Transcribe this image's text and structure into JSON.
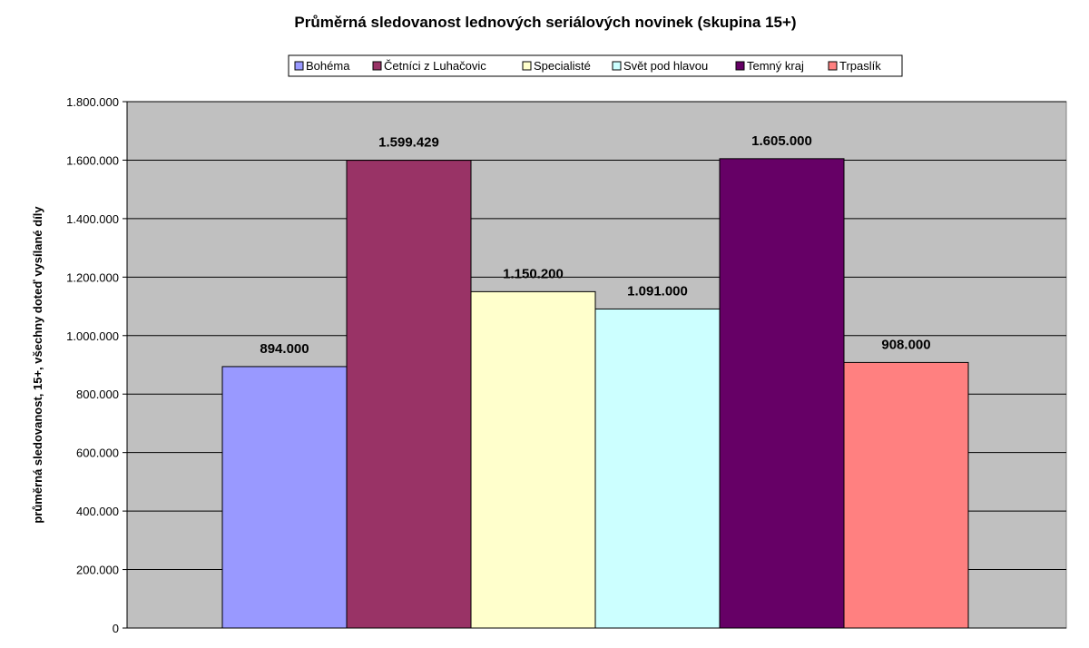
{
  "chart_data": {
    "type": "bar",
    "title": "Průměrná sledovanost lednových seriálových novinek (skupina 15+)",
    "ylabel": "průměrná sledovanost, 15+, všechny doteď vysílané díly",
    "xlabel": "",
    "ylim": [
      0,
      1800000
    ],
    "ytick_step": 200000,
    "ytick_labels": [
      "0",
      "200.000",
      "400.000",
      "600.000",
      "800.000",
      "1.000.000",
      "1.200.000",
      "1.400.000",
      "1.600.000",
      "1.800.000"
    ],
    "grid": true,
    "legend_position": "top",
    "plot_background": "#C0C0C0",
    "series": [
      {
        "name": "Bohéma",
        "value": 894000,
        "label": "894.000",
        "color": "#9999FF"
      },
      {
        "name": "Četníci z Luhačovic",
        "value": 1599429,
        "label": "1.599.429",
        "color": "#993366"
      },
      {
        "name": "Specialisté",
        "value": 1150200,
        "label": "1.150.200",
        "color": "#FFFFCC"
      },
      {
        "name": "Svět pod hlavou",
        "value": 1091000,
        "label": "1.091.000",
        "color": "#CCFFFF"
      },
      {
        "name": "Temný kraj",
        "value": 1605000,
        "label": "1.605.000",
        "color": "#660066"
      },
      {
        "name": "Trpaslík",
        "value": 908000,
        "label": "908.000",
        "color": "#FF8080"
      }
    ]
  }
}
